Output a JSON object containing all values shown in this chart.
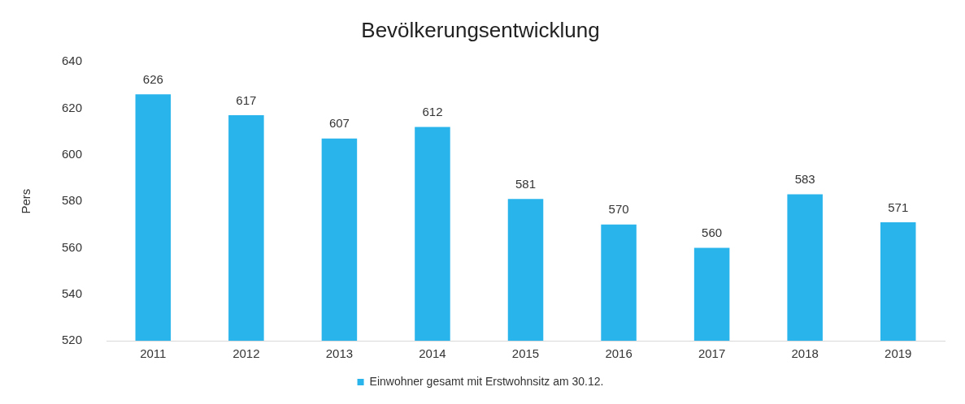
{
  "chart_data": {
    "type": "bar",
    "title": "Bevölkerungsentwicklung",
    "ylabel": "Pers",
    "categories": [
      "2011",
      "2012",
      "2013",
      "2014",
      "2015",
      "2016",
      "2017",
      "2018",
      "2019"
    ],
    "series": [
      {
        "name": "Einwohner gesamt mit Erstwohnsitz am 30.12.",
        "color": "#2ab4ec",
        "values": [
          626,
          617,
          607,
          612,
          581,
          570,
          560,
          583,
          571
        ]
      }
    ],
    "ylim": [
      520,
      640
    ],
    "yticks": [
      520,
      540,
      560,
      580,
      600,
      620,
      640
    ],
    "grid": false,
    "legend": "bottom",
    "data_labels": true
  }
}
